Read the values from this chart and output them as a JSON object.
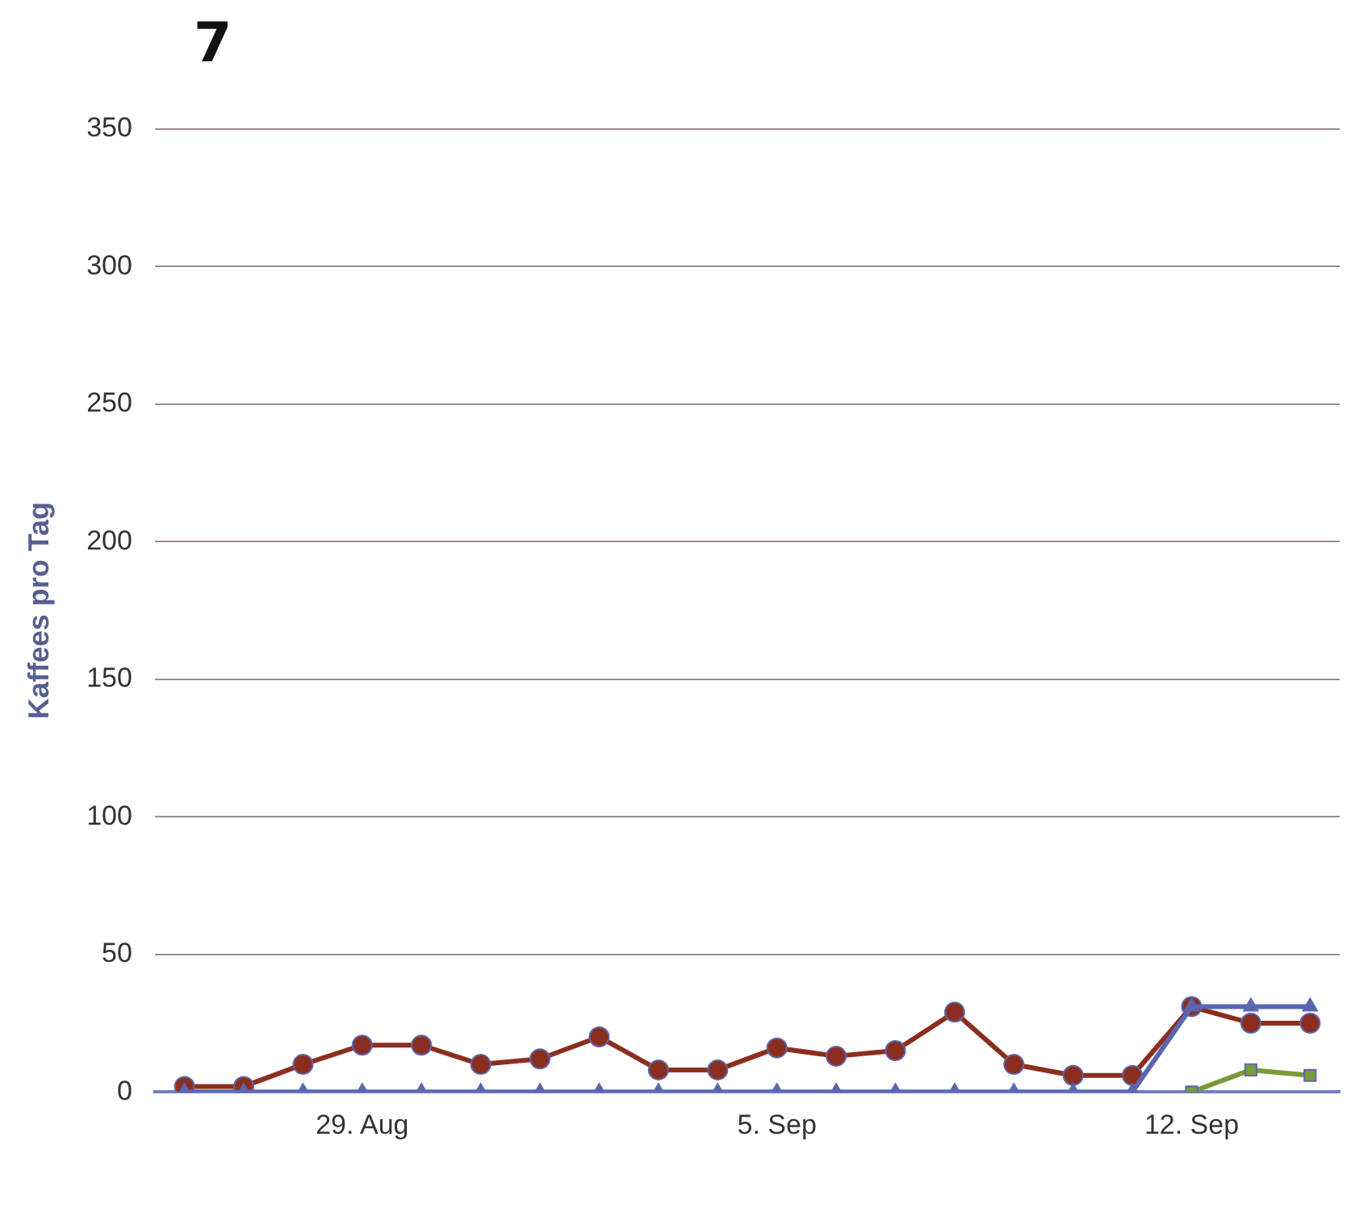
{
  "chart_data": {
    "type": "line",
    "ylabel": "Kaffees pro Tag",
    "categories": [
      null,
      null,
      null,
      "29. Aug",
      null,
      null,
      null,
      null,
      null,
      null,
      "5. Sep",
      null,
      null,
      null,
      null,
      null,
      null,
      "12. Sep",
      null,
      null
    ],
    "series": [
      {
        "color": "#5a67b0",
        "marker": "triangle",
        "values": [
          0,
          0,
          0,
          0,
          0,
          0,
          0,
          0,
          0,
          0,
          0,
          0,
          0,
          0,
          0,
          0,
          0,
          31,
          31,
          31
        ]
      },
      {
        "color": "#7a9a3a",
        "marker": "square",
        "values": [
          null,
          null,
          null,
          null,
          null,
          null,
          null,
          null,
          null,
          null,
          null,
          null,
          null,
          null,
          null,
          null,
          null,
          0,
          8,
          6
        ]
      },
      {
        "color": "#8b2e1f",
        "marker": "circle",
        "values": [
          2,
          2,
          10,
          17,
          17,
          10,
          12,
          20,
          8,
          8,
          16,
          13,
          15,
          29,
          10,
          6,
          6,
          31,
          25,
          25
        ]
      }
    ],
    "ylim": [
      0,
      350
    ],
    "yticks": [
      0,
      50,
      100,
      150,
      200,
      250,
      300,
      350
    ],
    "grid": "y",
    "legend": false,
    "annotations": [
      "7"
    ]
  }
}
